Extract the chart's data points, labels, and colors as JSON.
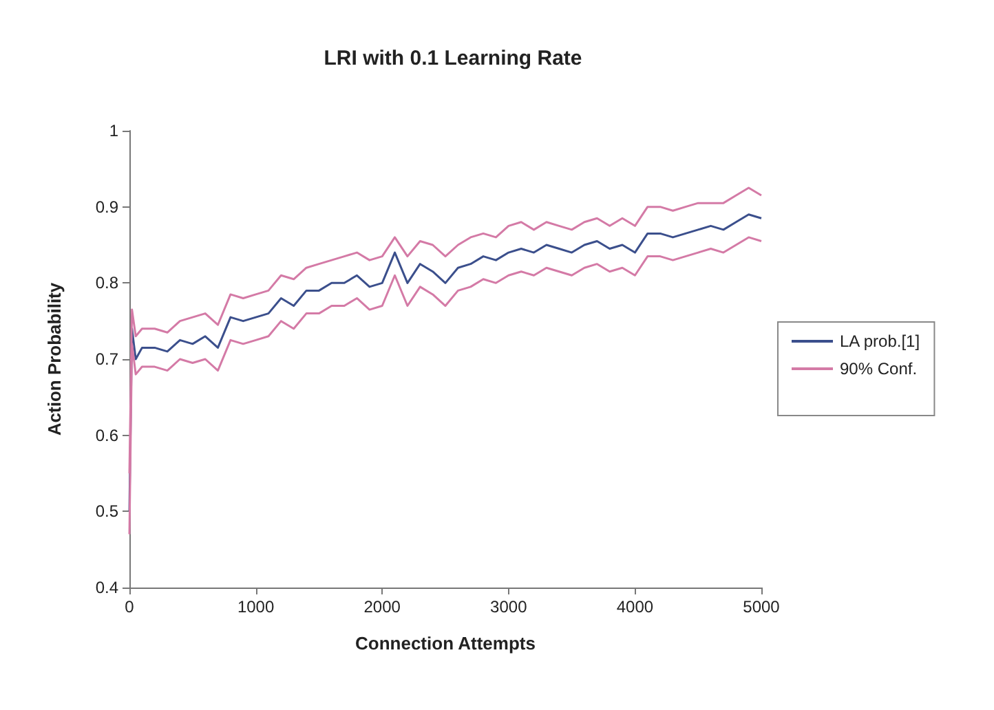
{
  "chart_data": {
    "type": "line",
    "title": "LRI with 0.1 Learning Rate",
    "xlabel": "Connection Attempts",
    "ylabel": "Action Probability",
    "x": [
      0,
      20,
      50,
      100,
      200,
      300,
      400,
      500,
      600,
      700,
      800,
      900,
      1000,
      1100,
      1200,
      1300,
      1400,
      1500,
      1600,
      1700,
      1800,
      1900,
      2000,
      2100,
      2200,
      2300,
      2400,
      2500,
      2600,
      2700,
      2800,
      2900,
      3000,
      3100,
      3200,
      3300,
      3400,
      3500,
      3600,
      3700,
      3800,
      3900,
      4000,
      4100,
      4200,
      4300,
      4400,
      4500,
      4600,
      4700,
      4800,
      4900,
      5000
    ],
    "series": [
      {
        "name": "LA prob.[1]",
        "color": "#3b4f8c",
        "values": [
          0.5,
          0.74,
          0.7,
          0.715,
          0.715,
          0.71,
          0.725,
          0.72,
          0.73,
          0.715,
          0.755,
          0.75,
          0.755,
          0.76,
          0.78,
          0.77,
          0.79,
          0.79,
          0.8,
          0.8,
          0.81,
          0.795,
          0.8,
          0.84,
          0.8,
          0.825,
          0.815,
          0.8,
          0.82,
          0.825,
          0.835,
          0.83,
          0.84,
          0.845,
          0.84,
          0.85,
          0.845,
          0.84,
          0.85,
          0.855,
          0.845,
          0.85,
          0.84,
          0.865,
          0.865,
          0.86,
          0.865,
          0.87,
          0.875,
          0.87,
          0.88,
          0.89,
          0.885
        ]
      },
      {
        "name": "90% Conf.",
        "color": "#d47aa6",
        "values": [
          0.55,
          0.765,
          0.73,
          0.74,
          0.74,
          0.735,
          0.75,
          0.755,
          0.76,
          0.745,
          0.785,
          0.78,
          0.785,
          0.79,
          0.81,
          0.805,
          0.82,
          0.825,
          0.83,
          0.835,
          0.84,
          0.83,
          0.835,
          0.86,
          0.835,
          0.855,
          0.85,
          0.835,
          0.85,
          0.86,
          0.865,
          0.86,
          0.875,
          0.88,
          0.87,
          0.88,
          0.875,
          0.87,
          0.88,
          0.885,
          0.875,
          0.885,
          0.875,
          0.9,
          0.9,
          0.895,
          0.9,
          0.905,
          0.905,
          0.905,
          0.915,
          0.925,
          0.915
        ]
      },
      {
        "color": "#d47aa6",
        "values": [
          0.47,
          0.72,
          0.68,
          0.69,
          0.69,
          0.685,
          0.7,
          0.695,
          0.7,
          0.685,
          0.725,
          0.72,
          0.725,
          0.73,
          0.75,
          0.74,
          0.76,
          0.76,
          0.77,
          0.77,
          0.78,
          0.765,
          0.77,
          0.81,
          0.77,
          0.795,
          0.785,
          0.77,
          0.79,
          0.795,
          0.805,
          0.8,
          0.81,
          0.815,
          0.81,
          0.82,
          0.815,
          0.81,
          0.82,
          0.825,
          0.815,
          0.82,
          0.81,
          0.835,
          0.835,
          0.83,
          0.835,
          0.84,
          0.845,
          0.84,
          0.85,
          0.86,
          0.855
        ]
      }
    ],
    "xlim": [
      0,
      5000
    ],
    "xticks": [
      0,
      1000,
      2000,
      3000,
      4000,
      5000
    ],
    "ylim": [
      0.4,
      1
    ],
    "yticks": [
      0.4,
      0.5,
      0.6,
      0.7,
      0.8,
      0.9,
      1
    ],
    "grid": false,
    "legend": "right",
    "marker": "none",
    "line_style": "solid"
  }
}
